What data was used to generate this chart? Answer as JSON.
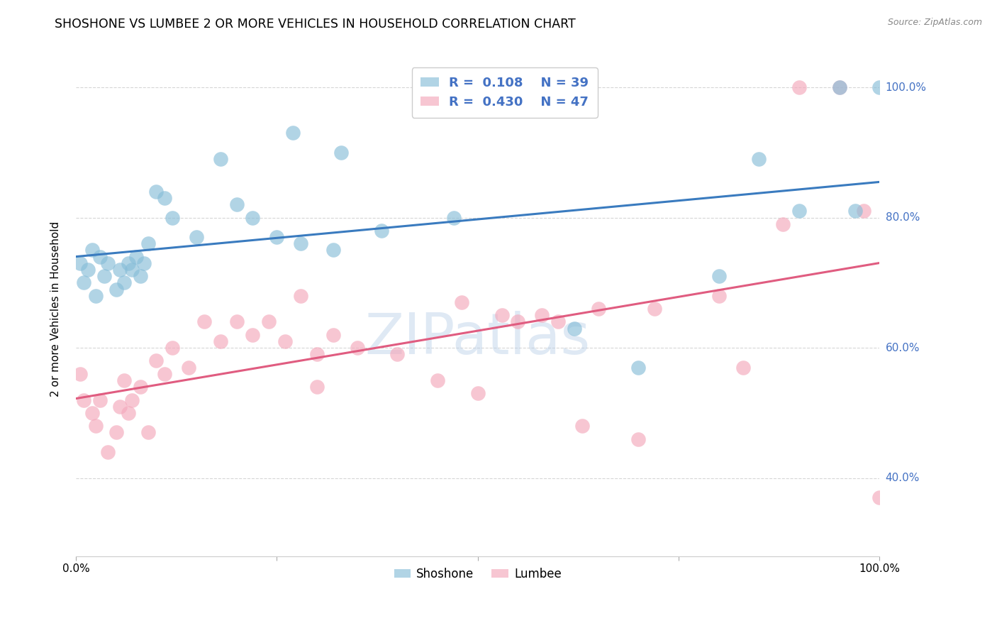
{
  "title": "SHOSHONE VS LUMBEE 2 OR MORE VEHICLES IN HOUSEHOLD CORRELATION CHART",
  "source": "Source: ZipAtlas.com",
  "ylabel": "2 or more Vehicles in Household",
  "shoshone_color": "#87bdd8",
  "lumbee_color": "#f4a8bb",
  "shoshone_line_color": "#3a7bbf",
  "lumbee_line_color": "#e05c80",
  "shoshone_R": 0.108,
  "shoshone_N": 39,
  "lumbee_R": 0.43,
  "lumbee_N": 47,
  "background_color": "#ffffff",
  "grid_color": "#cccccc",
  "legend_color": "#4472c4",
  "xlim": [
    0.0,
    1.0
  ],
  "ylim": [
    0.28,
    1.04
  ],
  "yticks": [
    0.4,
    0.6,
    0.8,
    1.0
  ],
  "ytick_labels": [
    "40.0%",
    "60.0%",
    "80.0%",
    "100.0%"
  ],
  "xticks": [
    0.0,
    0.25,
    0.5,
    0.75,
    1.0
  ],
  "xtick_labels": [
    "0.0%",
    "",
    "",
    "",
    "100.0%"
  ],
  "shoshone_x": [
    0.005,
    0.01,
    0.015,
    0.02,
    0.025,
    0.03,
    0.035,
    0.04,
    0.05,
    0.055,
    0.06,
    0.065,
    0.07,
    0.075,
    0.08,
    0.085,
    0.09,
    0.1,
    0.11,
    0.12,
    0.15,
    0.18,
    0.2,
    0.22,
    0.25,
    0.28,
    0.32,
    0.38,
    0.47,
    0.62,
    0.7,
    0.8,
    0.85,
    0.9,
    0.95,
    0.97,
    1.0,
    0.27,
    0.33
  ],
  "shoshone_y": [
    0.73,
    0.7,
    0.72,
    0.75,
    0.68,
    0.74,
    0.71,
    0.73,
    0.69,
    0.72,
    0.7,
    0.73,
    0.72,
    0.74,
    0.71,
    0.73,
    0.76,
    0.84,
    0.83,
    0.8,
    0.77,
    0.89,
    0.82,
    0.8,
    0.77,
    0.76,
    0.75,
    0.78,
    0.8,
    0.63,
    0.57,
    0.71,
    0.89,
    0.81,
    1.0,
    0.81,
    1.0,
    0.93,
    0.9
  ],
  "lumbee_x": [
    0.005,
    0.01,
    0.02,
    0.025,
    0.03,
    0.04,
    0.05,
    0.055,
    0.06,
    0.065,
    0.07,
    0.08,
    0.09,
    0.1,
    0.11,
    0.12,
    0.14,
    0.16,
    0.18,
    0.2,
    0.22,
    0.24,
    0.26,
    0.28,
    0.3,
    0.3,
    0.32,
    0.35,
    0.4,
    0.45,
    0.48,
    0.5,
    0.53,
    0.55,
    0.58,
    0.6,
    0.63,
    0.65,
    0.7,
    0.72,
    0.8,
    0.83,
    0.88,
    0.9,
    0.95,
    0.98,
    1.0
  ],
  "lumbee_y": [
    0.56,
    0.52,
    0.5,
    0.48,
    0.52,
    0.44,
    0.47,
    0.51,
    0.55,
    0.5,
    0.52,
    0.54,
    0.47,
    0.58,
    0.56,
    0.6,
    0.57,
    0.64,
    0.61,
    0.64,
    0.62,
    0.64,
    0.61,
    0.68,
    0.59,
    0.54,
    0.62,
    0.6,
    0.59,
    0.55,
    0.67,
    0.53,
    0.65,
    0.64,
    0.65,
    0.64,
    0.48,
    0.66,
    0.46,
    0.66,
    0.68,
    0.57,
    0.79,
    1.0,
    1.0,
    0.81,
    0.37
  ]
}
